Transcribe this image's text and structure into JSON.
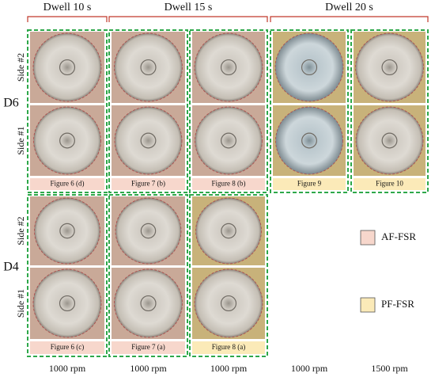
{
  "headers": [
    "Dwell 10 s",
    "Dwell 15 s",
    "Dwell 20 s"
  ],
  "groups": [
    {
      "label": "D6",
      "sides": [
        "Side #2",
        "Side #1"
      ],
      "captions": [
        "Figure 6 (d)",
        "Figure 7 (b)",
        "Figure 8 (b)",
        "Figure 9",
        "Figure 10"
      ]
    },
    {
      "label": "D4",
      "sides": [
        "Side #2",
        "Side #1"
      ],
      "captions": [
        "Figure 6 (c)",
        "Figure 7 (a)",
        "Figure 8 (a)",
        null,
        null
      ]
    }
  ],
  "legend": [
    "AF-FSR",
    "PF-FSR"
  ],
  "speeds": [
    "1000 rpm",
    "1000 rpm",
    "1000 rpm",
    "1000 rpm",
    "1500 rpm"
  ]
}
